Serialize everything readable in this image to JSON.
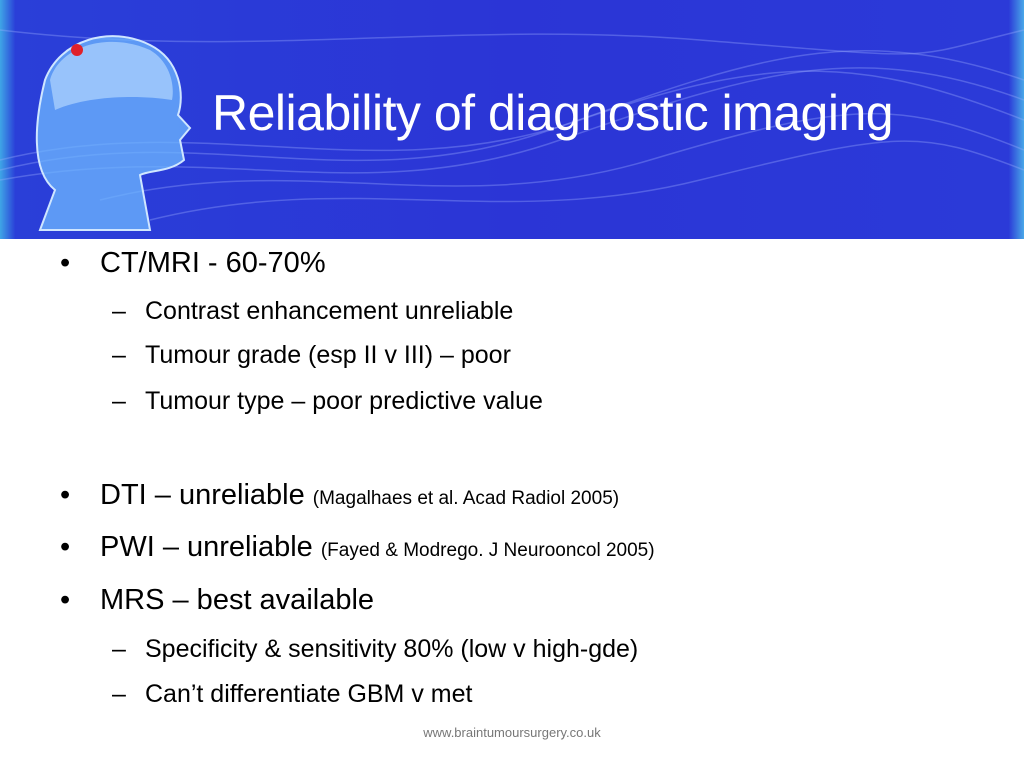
{
  "slide": {
    "title": "Reliability of diagnostic imaging",
    "bullets": [
      {
        "text": "CT/MRI - 60-70%",
        "ref": ""
      },
      {
        "text": "DTI – unreliable",
        "ref": "(Magalhaes et al. Acad Radiol 2005)"
      },
      {
        "text": "PWI – unreliable",
        "ref": "(Fayed & Modrego. J Neurooncol 2005)"
      },
      {
        "text": "MRS – best available",
        "ref": ""
      }
    ],
    "sub_bullets": {
      "ct_mri": [
        "Contrast enhancement unreliable",
        "Tumour grade (esp II v III) – poor",
        "Tumour type – poor predictive value"
      ],
      "mrs": [
        "Specificity & sensitivity 80% (low v high-gde)",
        "Can’t differentiate GBM v met"
      ]
    },
    "bullet_glyph": "•",
    "sub_glyph": "–",
    "footer": "www.braintumoursurgery.co.uk"
  },
  "colors": {
    "banner": "#2b35d6",
    "title": "#ffffff",
    "text": "#000000"
  }
}
